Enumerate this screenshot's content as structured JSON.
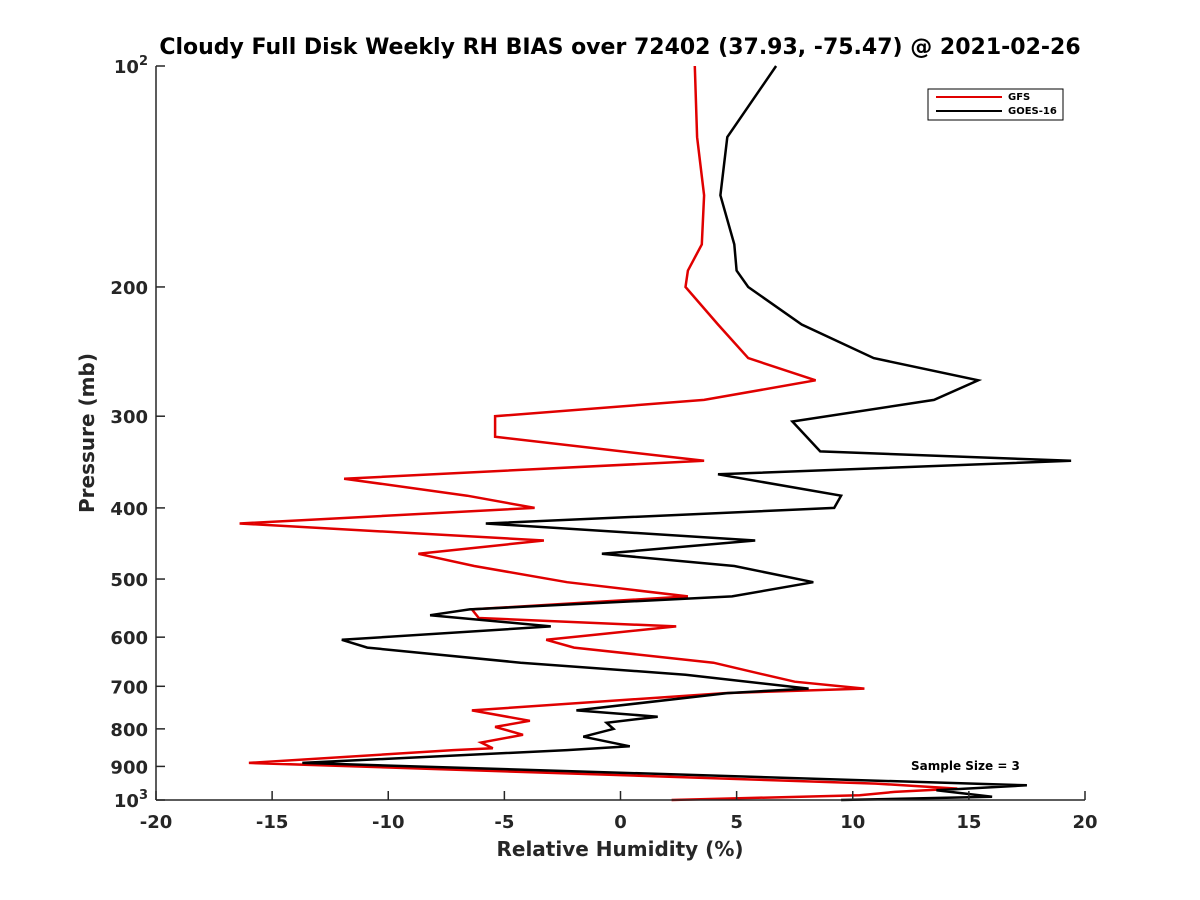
{
  "chart_data": {
    "type": "line",
    "title": "Cloudy Full Disk Weekly RH BIAS over 72402 (37.93, -75.47) @ 2021-02-26",
    "xlabel": "Relative Humidity (%)",
    "ylabel": "Pressure (mb)",
    "xlim": [
      -20,
      20
    ],
    "ylim": [
      100,
      1000
    ],
    "y_scale": "log",
    "y_reversed": true,
    "grid": false,
    "legend_position": "top-right",
    "x_ticks": [
      -20,
      -15,
      -10,
      -5,
      0,
      5,
      10,
      15,
      20
    ],
    "x_tick_labels": [
      "-20",
      "-15",
      "-10",
      "-5",
      "0",
      "5",
      "10",
      "15",
      "20"
    ],
    "y_ticks": [
      100,
      200,
      300,
      400,
      500,
      600,
      700,
      800,
      900,
      1000
    ],
    "y_tick_labels": [
      {
        "base": "10",
        "sup": "2"
      },
      {
        "base": "200",
        "sup": ""
      },
      {
        "base": "300",
        "sup": ""
      },
      {
        "base": "400",
        "sup": ""
      },
      {
        "base": "500",
        "sup": ""
      },
      {
        "base": "600",
        "sup": ""
      },
      {
        "base": "700",
        "sup": ""
      },
      {
        "base": "800",
        "sup": ""
      },
      {
        "base": "900",
        "sup": ""
      },
      {
        "base": "10",
        "sup": "3"
      }
    ],
    "annotation": "Sample Size = 3",
    "series": [
      {
        "name": "GFS",
        "color": "#e00000",
        "points": [
          [
            3.2,
            100
          ],
          [
            3.3,
            125
          ],
          [
            3.6,
            150
          ],
          [
            3.5,
            175
          ],
          [
            2.9,
            190
          ],
          [
            2.8,
            200
          ],
          [
            4.2,
            225
          ],
          [
            5.5,
            250
          ],
          [
            8.4,
            268
          ],
          [
            3.6,
            285
          ],
          [
            -5.4,
            300
          ],
          [
            -5.4,
            320
          ],
          [
            3.6,
            345
          ],
          [
            -11.9,
            365
          ],
          [
            -6.6,
            385
          ],
          [
            -3.7,
            400
          ],
          [
            -16.4,
            420
          ],
          [
            -3.3,
            443
          ],
          [
            -8.7,
            462
          ],
          [
            -6.3,
            480
          ],
          [
            -2.3,
            505
          ],
          [
            2.9,
            528
          ],
          [
            -6.4,
            550
          ],
          [
            -6.1,
            565
          ],
          [
            2.4,
            580
          ],
          [
            -3.2,
            605
          ],
          [
            -2.0,
            620
          ],
          [
            4.0,
            650
          ],
          [
            6.2,
            675
          ],
          [
            7.5,
            690
          ],
          [
            10.5,
            705
          ],
          [
            4.5,
            715
          ],
          [
            -6.4,
            755
          ],
          [
            -3.9,
            780
          ],
          [
            -5.4,
            795
          ],
          [
            -4.2,
            815
          ],
          [
            -6.0,
            835
          ],
          [
            -5.5,
            850
          ],
          [
            -7.2,
            855
          ],
          [
            -16.0,
            890
          ],
          [
            11.0,
            950
          ],
          [
            14.5,
            965
          ],
          [
            11.8,
            975
          ],
          [
            10.3,
            985
          ],
          [
            2.2,
            1000
          ]
        ]
      },
      {
        "name": "GOES-16",
        "color": "#000000",
        "points": [
          [
            6.7,
            100
          ],
          [
            4.6,
            125
          ],
          [
            4.3,
            150
          ],
          [
            4.9,
            175
          ],
          [
            5.0,
            190
          ],
          [
            5.5,
            200
          ],
          [
            7.8,
            225
          ],
          [
            10.9,
            250
          ],
          [
            15.4,
            268
          ],
          [
            13.5,
            285
          ],
          [
            7.4,
            305
          ],
          [
            8.6,
            335
          ],
          [
            19.4,
            345
          ],
          [
            4.2,
            360
          ],
          [
            9.5,
            385
          ],
          [
            9.2,
            400
          ],
          [
            -5.8,
            420
          ],
          [
            5.8,
            443
          ],
          [
            -0.8,
            462
          ],
          [
            4.9,
            480
          ],
          [
            8.3,
            505
          ],
          [
            4.8,
            528
          ],
          [
            -6.5,
            550
          ],
          [
            -8.2,
            560
          ],
          [
            -3.0,
            580
          ],
          [
            -12.0,
            605
          ],
          [
            -10.9,
            620
          ],
          [
            -4.3,
            650
          ],
          [
            2.8,
            675
          ],
          [
            8.1,
            705
          ],
          [
            4.6,
            715
          ],
          [
            -1.9,
            755
          ],
          [
            1.6,
            770
          ],
          [
            -0.6,
            785
          ],
          [
            -0.3,
            800
          ],
          [
            -1.6,
            820
          ],
          [
            0.4,
            845
          ],
          [
            -2.3,
            855
          ],
          [
            -13.7,
            890
          ],
          [
            17.5,
            955
          ],
          [
            13.6,
            970
          ],
          [
            16.0,
            990
          ],
          [
            9.5,
            1000
          ]
        ]
      }
    ]
  }
}
